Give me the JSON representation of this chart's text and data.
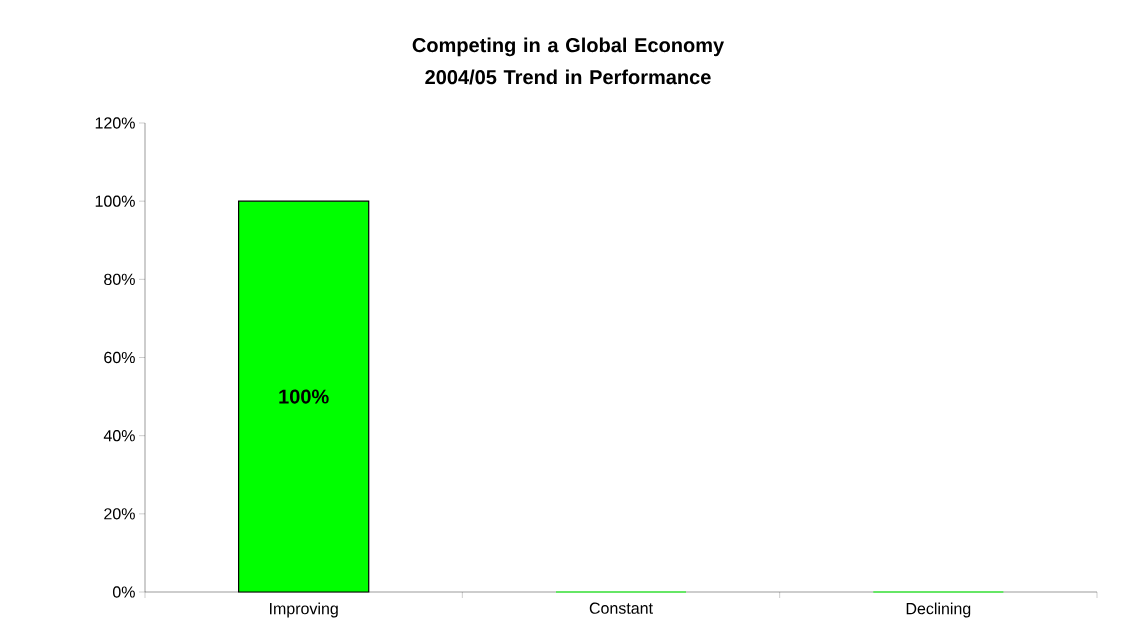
{
  "chart_data": {
    "type": "bar",
    "title": "Competing in a Global Economy\n2004/05 Trend in Performance",
    "categories": [
      "Improving",
      "Constant",
      "Declining"
    ],
    "values": [
      100,
      0,
      0
    ],
    "color": "#00ff00",
    "value_labels": [
      "100%",
      null,
      null
    ],
    "ylim": [
      0,
      120
    ],
    "yticks": [
      {
        "value": 0,
        "label": "0%"
      },
      {
        "value": 20,
        "label": "20%"
      },
      {
        "value": 40,
        "label": "40%"
      },
      {
        "value": 60,
        "label": "60%"
      },
      {
        "value": 80,
        "label": "80%"
      },
      {
        "value": 100,
        "label": "100%"
      },
      {
        "value": 120,
        "label": "120%"
      }
    ],
    "grid": false
  }
}
